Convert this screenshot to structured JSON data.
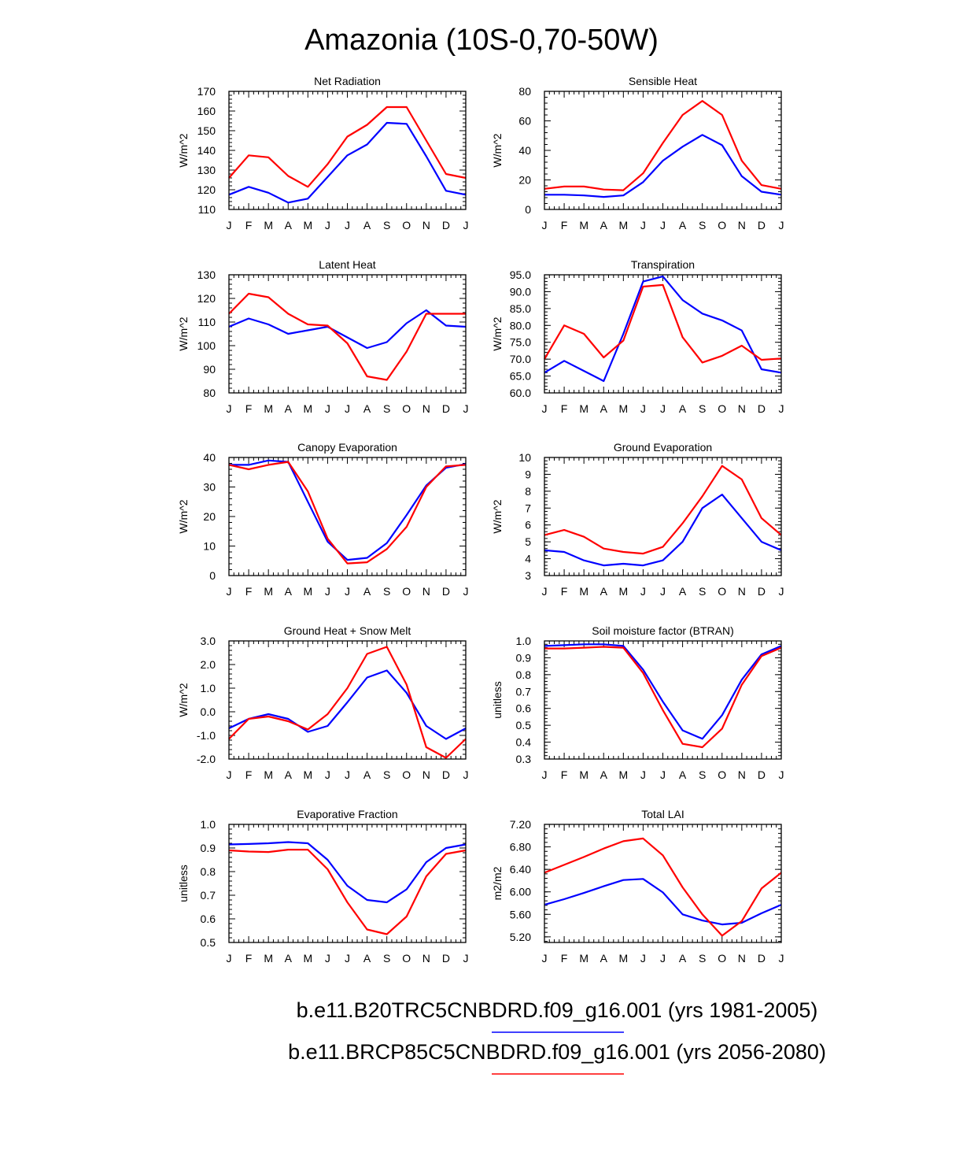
{
  "title": "Amazonia (10S-0,70-50W)",
  "legend": [
    {
      "label": "b.e11.B20TRC5CNBDRD.f09_g16.001 (yrs 1981-2005)",
      "color": "#0000ff"
    },
    {
      "label": "b.e11.BRCP85C5CNBDRD.f09_g16.001 (yrs 2056-2080)",
      "color": "#ff0000"
    }
  ],
  "chart_data": [
    {
      "type": "line",
      "title": "Net Radiation",
      "ylabel": "W/m^2",
      "ylim": [
        110,
        170
      ],
      "yticks": [
        "110",
        "120",
        "130",
        "140",
        "150",
        "160",
        "170"
      ],
      "categories": [
        "J",
        "F",
        "M",
        "A",
        "M",
        "J",
        "J",
        "A",
        "S",
        "O",
        "N",
        "D",
        "J"
      ],
      "series": [
        {
          "name": "1981-2005",
          "color": "#0000ff",
          "values": [
            117.5,
            121.5,
            118.5,
            113.5,
            115.5,
            126.5,
            137.5,
            143,
            154,
            153.5,
            137,
            119.5,
            117.5
          ]
        },
        {
          "name": "2056-2080",
          "color": "#ff0000",
          "values": [
            126,
            137.5,
            136.5,
            127,
            121.5,
            133,
            147,
            153,
            162,
            162,
            145,
            128,
            126
          ]
        }
      ]
    },
    {
      "type": "line",
      "title": "Sensible Heat",
      "ylabel": "W/m^2",
      "ylim": [
        0,
        80
      ],
      "yticks": [
        "0",
        "20",
        "40",
        "60",
        "80"
      ],
      "categories": [
        "J",
        "F",
        "M",
        "A",
        "M",
        "J",
        "J",
        "A",
        "S",
        "O",
        "N",
        "D",
        "J"
      ],
      "series": [
        {
          "name": "1981-2005",
          "color": "#0000ff",
          "values": [
            10,
            10,
            9.5,
            8.5,
            9.5,
            18.5,
            33,
            42.5,
            50.5,
            43.5,
            22.5,
            12,
            10
          ]
        },
        {
          "name": "2056-2080",
          "color": "#ff0000",
          "values": [
            14,
            15.5,
            15.5,
            13.5,
            13,
            24.5,
            45,
            64,
            73.5,
            64,
            33,
            16.5,
            14
          ]
        }
      ]
    },
    {
      "type": "line",
      "title": "Latent Heat",
      "ylabel": "W/m^2",
      "ylim": [
        80,
        130
      ],
      "yticks": [
        "80",
        "90",
        "100",
        "110",
        "120",
        "130"
      ],
      "categories": [
        "J",
        "F",
        "M",
        "A",
        "M",
        "J",
        "J",
        "A",
        "S",
        "O",
        "N",
        "D",
        "J"
      ],
      "series": [
        {
          "name": "1981-2005",
          "color": "#0000ff",
          "values": [
            108,
            111.5,
            109,
            105,
            106.5,
            108,
            103.5,
            99,
            101.5,
            109.5,
            115,
            108.5,
            108
          ]
        },
        {
          "name": "2056-2080",
          "color": "#ff0000",
          "values": [
            113.5,
            122,
            120.5,
            113.5,
            109,
            108.5,
            101,
            87,
            85.5,
            97.5,
            113.5,
            113.5,
            113.5
          ]
        }
      ]
    },
    {
      "type": "line",
      "title": "Transpiration",
      "ylabel": "W/m^2",
      "ylim": [
        60,
        95
      ],
      "yticks": [
        "60.0",
        "65.0",
        "70.0",
        "75.0",
        "80.0",
        "85.0",
        "90.0",
        "95.0"
      ],
      "categories": [
        "J",
        "F",
        "M",
        "A",
        "M",
        "J",
        "J",
        "A",
        "S",
        "O",
        "N",
        "D",
        "J"
      ],
      "series": [
        {
          "name": "1981-2005",
          "color": "#0000ff",
          "values": [
            66,
            69.5,
            66.5,
            63.5,
            77.5,
            93,
            94.5,
            87.5,
            83.5,
            81.5,
            78.5,
            67,
            66
          ]
        },
        {
          "name": "2056-2080",
          "color": "#ff0000",
          "values": [
            70,
            80,
            77.5,
            70.5,
            75.5,
            91.5,
            92,
            76.5,
            69,
            71,
            74,
            69.8,
            70.2
          ]
        }
      ]
    },
    {
      "type": "line",
      "title": "Canopy Evaporation",
      "ylabel": "W/m^2",
      "ylim": [
        0,
        40
      ],
      "yticks": [
        "0",
        "10",
        "20",
        "30",
        "40"
      ],
      "categories": [
        "J",
        "F",
        "M",
        "A",
        "M",
        "J",
        "J",
        "A",
        "S",
        "O",
        "N",
        "D",
        "J"
      ],
      "series": [
        {
          "name": "1981-2005",
          "color": "#0000ff",
          "values": [
            37.5,
            37.5,
            39,
            38.5,
            25,
            11.5,
            5.3,
            6,
            11,
            20.5,
            30.5,
            36.5,
            37.8
          ]
        },
        {
          "name": "2056-2080",
          "color": "#ff0000",
          "values": [
            37.5,
            36,
            37.5,
            38.5,
            28.5,
            12.5,
            4.1,
            4.5,
            9,
            16.5,
            30,
            37,
            37.5
          ]
        }
      ]
    },
    {
      "type": "line",
      "title": "Ground Evaporation",
      "ylabel": "W/m^2",
      "ylim": [
        3,
        10
      ],
      "yticks": [
        "3",
        "4",
        "5",
        "6",
        "7",
        "8",
        "9",
        "10"
      ],
      "categories": [
        "J",
        "F",
        "M",
        "A",
        "M",
        "J",
        "J",
        "A",
        "S",
        "O",
        "N",
        "D",
        "J"
      ],
      "series": [
        {
          "name": "1981-2005",
          "color": "#0000ff",
          "values": [
            4.5,
            4.4,
            3.9,
            3.6,
            3.7,
            3.6,
            3.9,
            5,
            7,
            7.8,
            6.4,
            5,
            4.5
          ]
        },
        {
          "name": "2056-2080",
          "color": "#ff0000",
          "values": [
            5.4,
            5.7,
            5.3,
            4.6,
            4.4,
            4.3,
            4.7,
            6.1,
            7.7,
            9.5,
            8.7,
            6.4,
            5.4
          ]
        }
      ]
    },
    {
      "type": "line",
      "title": "Ground Heat + Snow Melt",
      "ylabel": "W/m^2",
      "ylim": [
        -2,
        3
      ],
      "yticks": [
        "-2.0",
        "-1.0",
        "0.0",
        "1.0",
        "2.0",
        "3.0"
      ],
      "categories": [
        "J",
        "F",
        "M",
        "A",
        "M",
        "J",
        "J",
        "A",
        "S",
        "O",
        "N",
        "D",
        "J"
      ],
      "series": [
        {
          "name": "1981-2005",
          "color": "#0000ff",
          "values": [
            -0.7,
            -0.3,
            -0.1,
            -0.3,
            -0.85,
            -0.6,
            0.4,
            1.45,
            1.75,
            0.8,
            -0.6,
            -1.15,
            -0.7
          ]
        },
        {
          "name": "2056-2080",
          "color": "#ff0000",
          "values": [
            -1.15,
            -0.3,
            -0.2,
            -0.4,
            -0.75,
            -0.1,
            1.0,
            2.45,
            2.75,
            1.15,
            -1.5,
            -1.95,
            -1.15
          ]
        }
      ]
    },
    {
      "type": "line",
      "title": "Soil moisture factor (BTRAN)",
      "ylabel": "unitless",
      "ylim": [
        0.3,
        1.0
      ],
      "yticks": [
        "0.3",
        "0.4",
        "0.5",
        "0.6",
        "0.7",
        "0.8",
        "0.9",
        "1.0"
      ],
      "categories": [
        "J",
        "F",
        "M",
        "A",
        "M",
        "J",
        "J",
        "A",
        "S",
        "O",
        "N",
        "D",
        "J"
      ],
      "series": [
        {
          "name": "1981-2005",
          "color": "#0000ff",
          "values": [
            0.97,
            0.975,
            0.98,
            0.98,
            0.97,
            0.83,
            0.64,
            0.47,
            0.42,
            0.56,
            0.77,
            0.92,
            0.97
          ]
        },
        {
          "name": "2056-2080",
          "color": "#ff0000",
          "values": [
            0.955,
            0.955,
            0.96,
            0.965,
            0.96,
            0.81,
            0.59,
            0.39,
            0.37,
            0.48,
            0.74,
            0.91,
            0.96
          ]
        }
      ]
    },
    {
      "type": "line",
      "title": "Evaporative Fraction",
      "ylabel": "unitless",
      "ylim": [
        0.5,
        1.0
      ],
      "yticks": [
        "0.5",
        "0.6",
        "0.7",
        "0.8",
        "0.9",
        "1.0"
      ],
      "categories": [
        "J",
        "F",
        "M",
        "A",
        "M",
        "J",
        "J",
        "A",
        "S",
        "O",
        "N",
        "D",
        "J"
      ],
      "series": [
        {
          "name": "1981-2005",
          "color": "#0000ff",
          "values": [
            0.915,
            0.917,
            0.92,
            0.925,
            0.92,
            0.85,
            0.74,
            0.68,
            0.67,
            0.725,
            0.84,
            0.9,
            0.915
          ]
        },
        {
          "name": "2056-2080",
          "color": "#ff0000",
          "values": [
            0.89,
            0.885,
            0.883,
            0.893,
            0.893,
            0.81,
            0.67,
            0.555,
            0.535,
            0.61,
            0.78,
            0.875,
            0.89
          ]
        }
      ]
    },
    {
      "type": "line",
      "title": "Total LAI",
      "ylabel": "m2/m2",
      "ylim": [
        5.1,
        7.2
      ],
      "yticks": [
        "5.20",
        "5.60",
        "6.00",
        "6.40",
        "6.80",
        "7.20"
      ],
      "categories": [
        "J",
        "F",
        "M",
        "A",
        "M",
        "J",
        "J",
        "A",
        "S",
        "O",
        "N",
        "D",
        "J"
      ],
      "series": [
        {
          "name": "1981-2005",
          "color": "#0000ff",
          "values": [
            5.77,
            5.87,
            5.98,
            6.1,
            6.21,
            6.23,
            5.99,
            5.6,
            5.49,
            5.42,
            5.45,
            5.62,
            5.77
          ]
        },
        {
          "name": "2056-2080",
          "color": "#ff0000",
          "values": [
            6.34,
            6.48,
            6.62,
            6.77,
            6.9,
            6.95,
            6.65,
            6.08,
            5.6,
            5.22,
            5.48,
            6.06,
            6.34
          ]
        }
      ]
    }
  ]
}
